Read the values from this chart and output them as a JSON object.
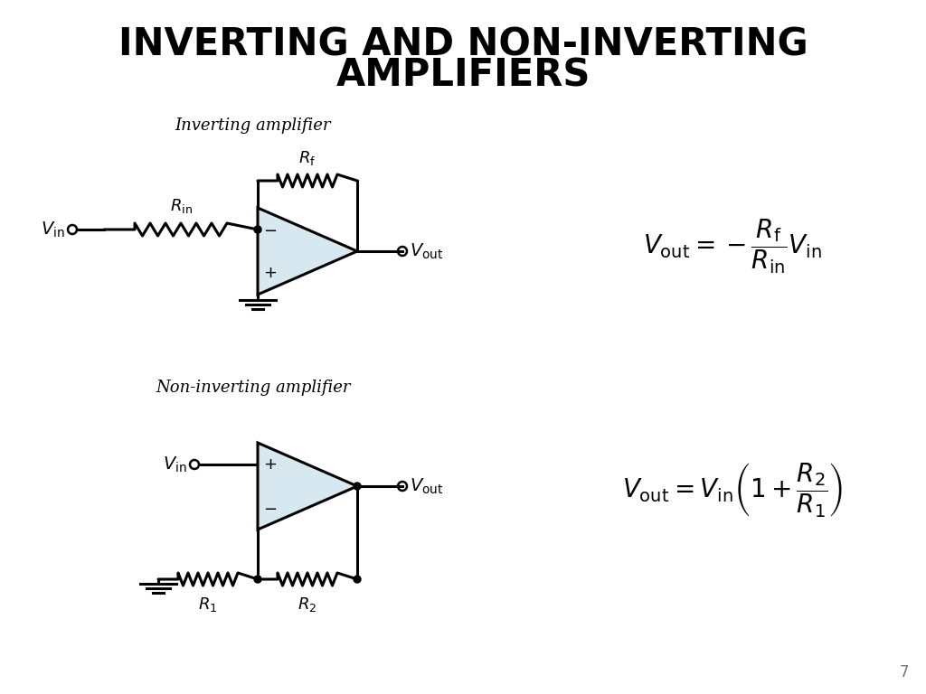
{
  "title_line1": "INVERTING AND NON-INVERTING",
  "title_line2": "AMPLIFIERS",
  "title_fontsize": 30,
  "title_color": "#000000",
  "background_color": "#ffffff",
  "page_number": "7",
  "inv_label": "Inverting amplifier",
  "noninv_label": "Non-inverting amplifier",
  "opamp_fill": "#d8e8f0",
  "wire_color": "#000000",
  "lw": 2.2
}
